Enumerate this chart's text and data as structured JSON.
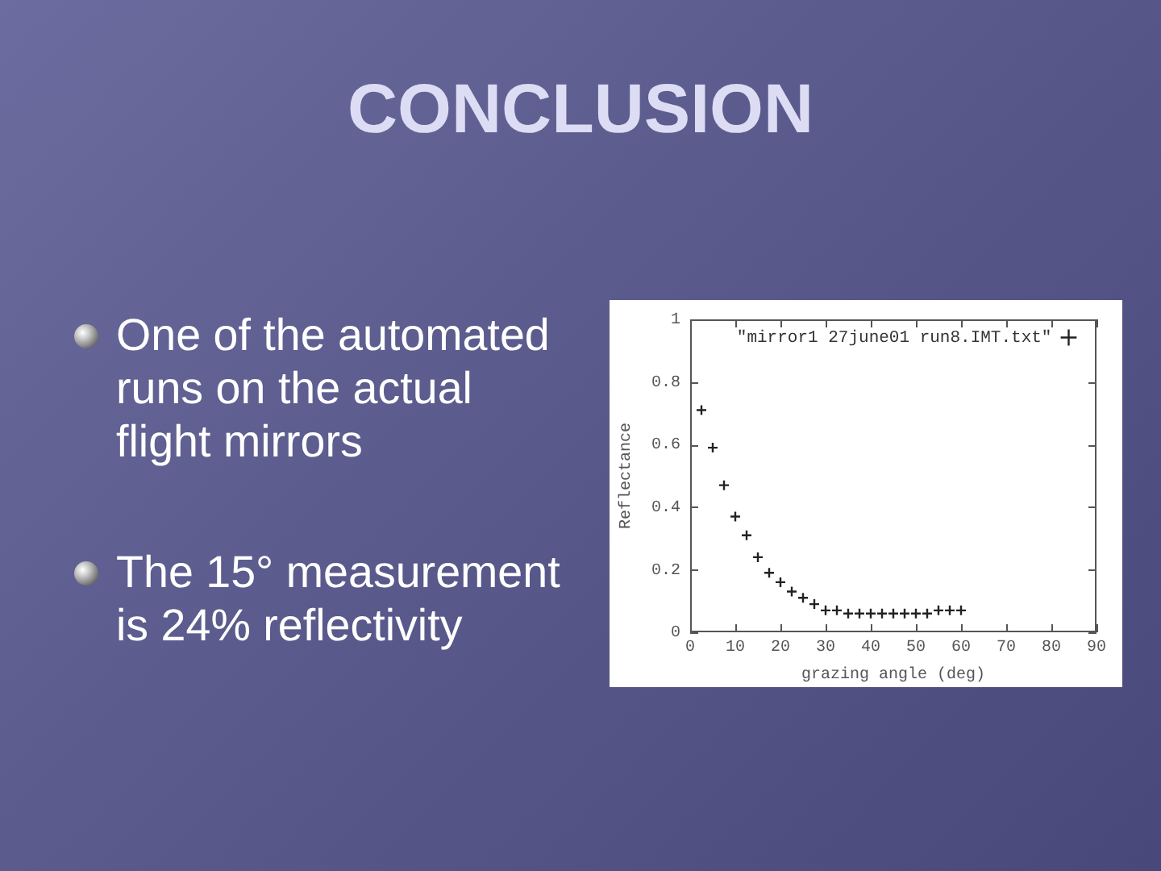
{
  "chart_data": {
    "type": "scatter",
    "title": "CONCLUSION",
    "annotations": [
      "One of the automated runs on the actual flight mirrors",
      "The 15° measurement is 24% reflectivity"
    ],
    "xlabel": "grazing angle (deg)",
    "ylabel": "Reflectance",
    "x": [
      2.5,
      5,
      7.5,
      10,
      12.5,
      15,
      17.5,
      20,
      22.5,
      25,
      27.5,
      30,
      32.5,
      35,
      37.5,
      40,
      42.5,
      45,
      47.5,
      50,
      52.5,
      55,
      57.5,
      60
    ],
    "series": [
      {
        "name": "\"mirror1 27june01 run8.IMT.txt\"",
        "color": "#222222",
        "values": [
          0.71,
          0.59,
          0.47,
          0.37,
          0.31,
          0.24,
          0.19,
          0.16,
          0.13,
          0.11,
          0.09,
          0.07,
          0.07,
          0.06,
          0.06,
          0.06,
          0.06,
          0.06,
          0.06,
          0.06,
          0.06,
          0.07,
          0.07,
          0.07
        ]
      }
    ],
    "xlim": [
      0,
      90
    ],
    "xticks": [
      0,
      10,
      20,
      30,
      40,
      50,
      60,
      70,
      80,
      90
    ],
    "ylim": [
      0,
      1
    ],
    "yticks": [
      0,
      0.2,
      0.4,
      0.6,
      0.8,
      1
    ],
    "grid": false,
    "legend": "top right",
    "marker": "cross"
  }
}
